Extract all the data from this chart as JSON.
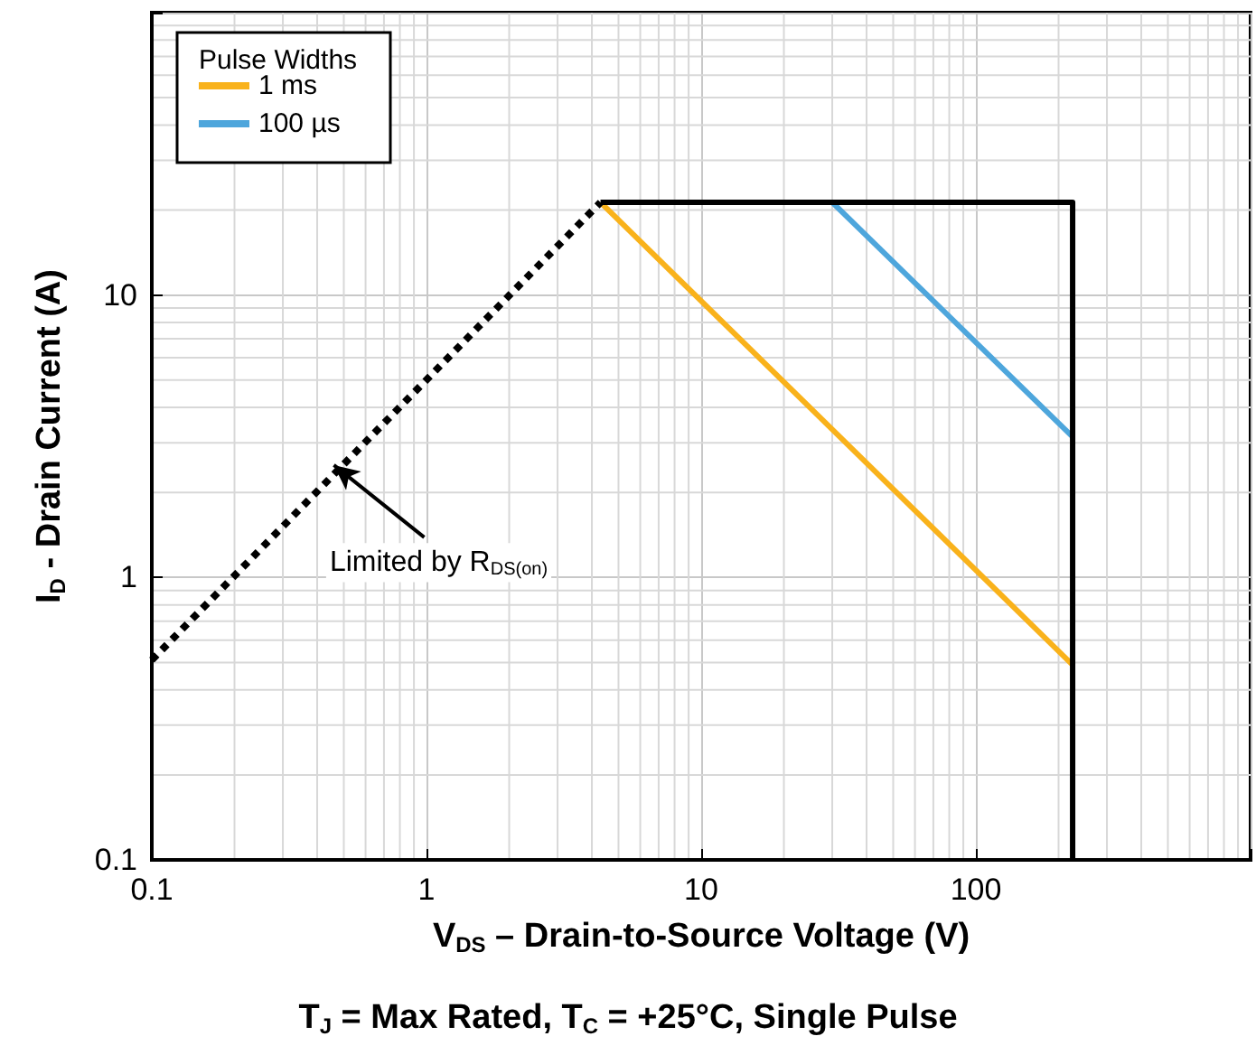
{
  "chart_data": {
    "type": "line",
    "xlabel": "V$_{DS}$ – Drain-to-Source Voltage (V)",
    "ylabel": "I$_{D}$ - Drain Current (A)",
    "subtitle": "T$_{J}$ = Max Rated, T$_{C}$ = +25°C, Single Pulse",
    "legend_title": "Pulse Widths",
    "log": "xy",
    "grid": true,
    "legend": "top left",
    "xlim": [
      0.1,
      1000
    ],
    "ylim": [
      0.1,
      100
    ],
    "xticks": [
      0.1,
      1,
      10,
      100
    ],
    "yticks": [
      0.1,
      1,
      10
    ],
    "series": [
      {
        "name": "1 ms",
        "color": "#f9b21b",
        "x": [
          4.3,
          225
        ],
        "values": [
          21.3,
          0.49
        ]
      },
      {
        "name": "100 µs",
        "color": "#4ea6dc",
        "x": [
          30,
          225
        ],
        "values": [
          21.3,
          3.15
        ]
      },
      {
        "color": "#000000",
        "line_style": "dotted",
        "x": [
          0.1,
          4.3
        ],
        "values": [
          0.51,
          21.3
        ]
      },
      {
        "color": "#000000",
        "x": [
          4.3,
          225,
          225
        ],
        "values": [
          21.3,
          21.3,
          0.1
        ]
      }
    ],
    "annotations": [
      {
        "text": "Limited by R$_{DS(on)}$",
        "x": 0.46,
        "y": 2.5
      }
    ]
  }
}
